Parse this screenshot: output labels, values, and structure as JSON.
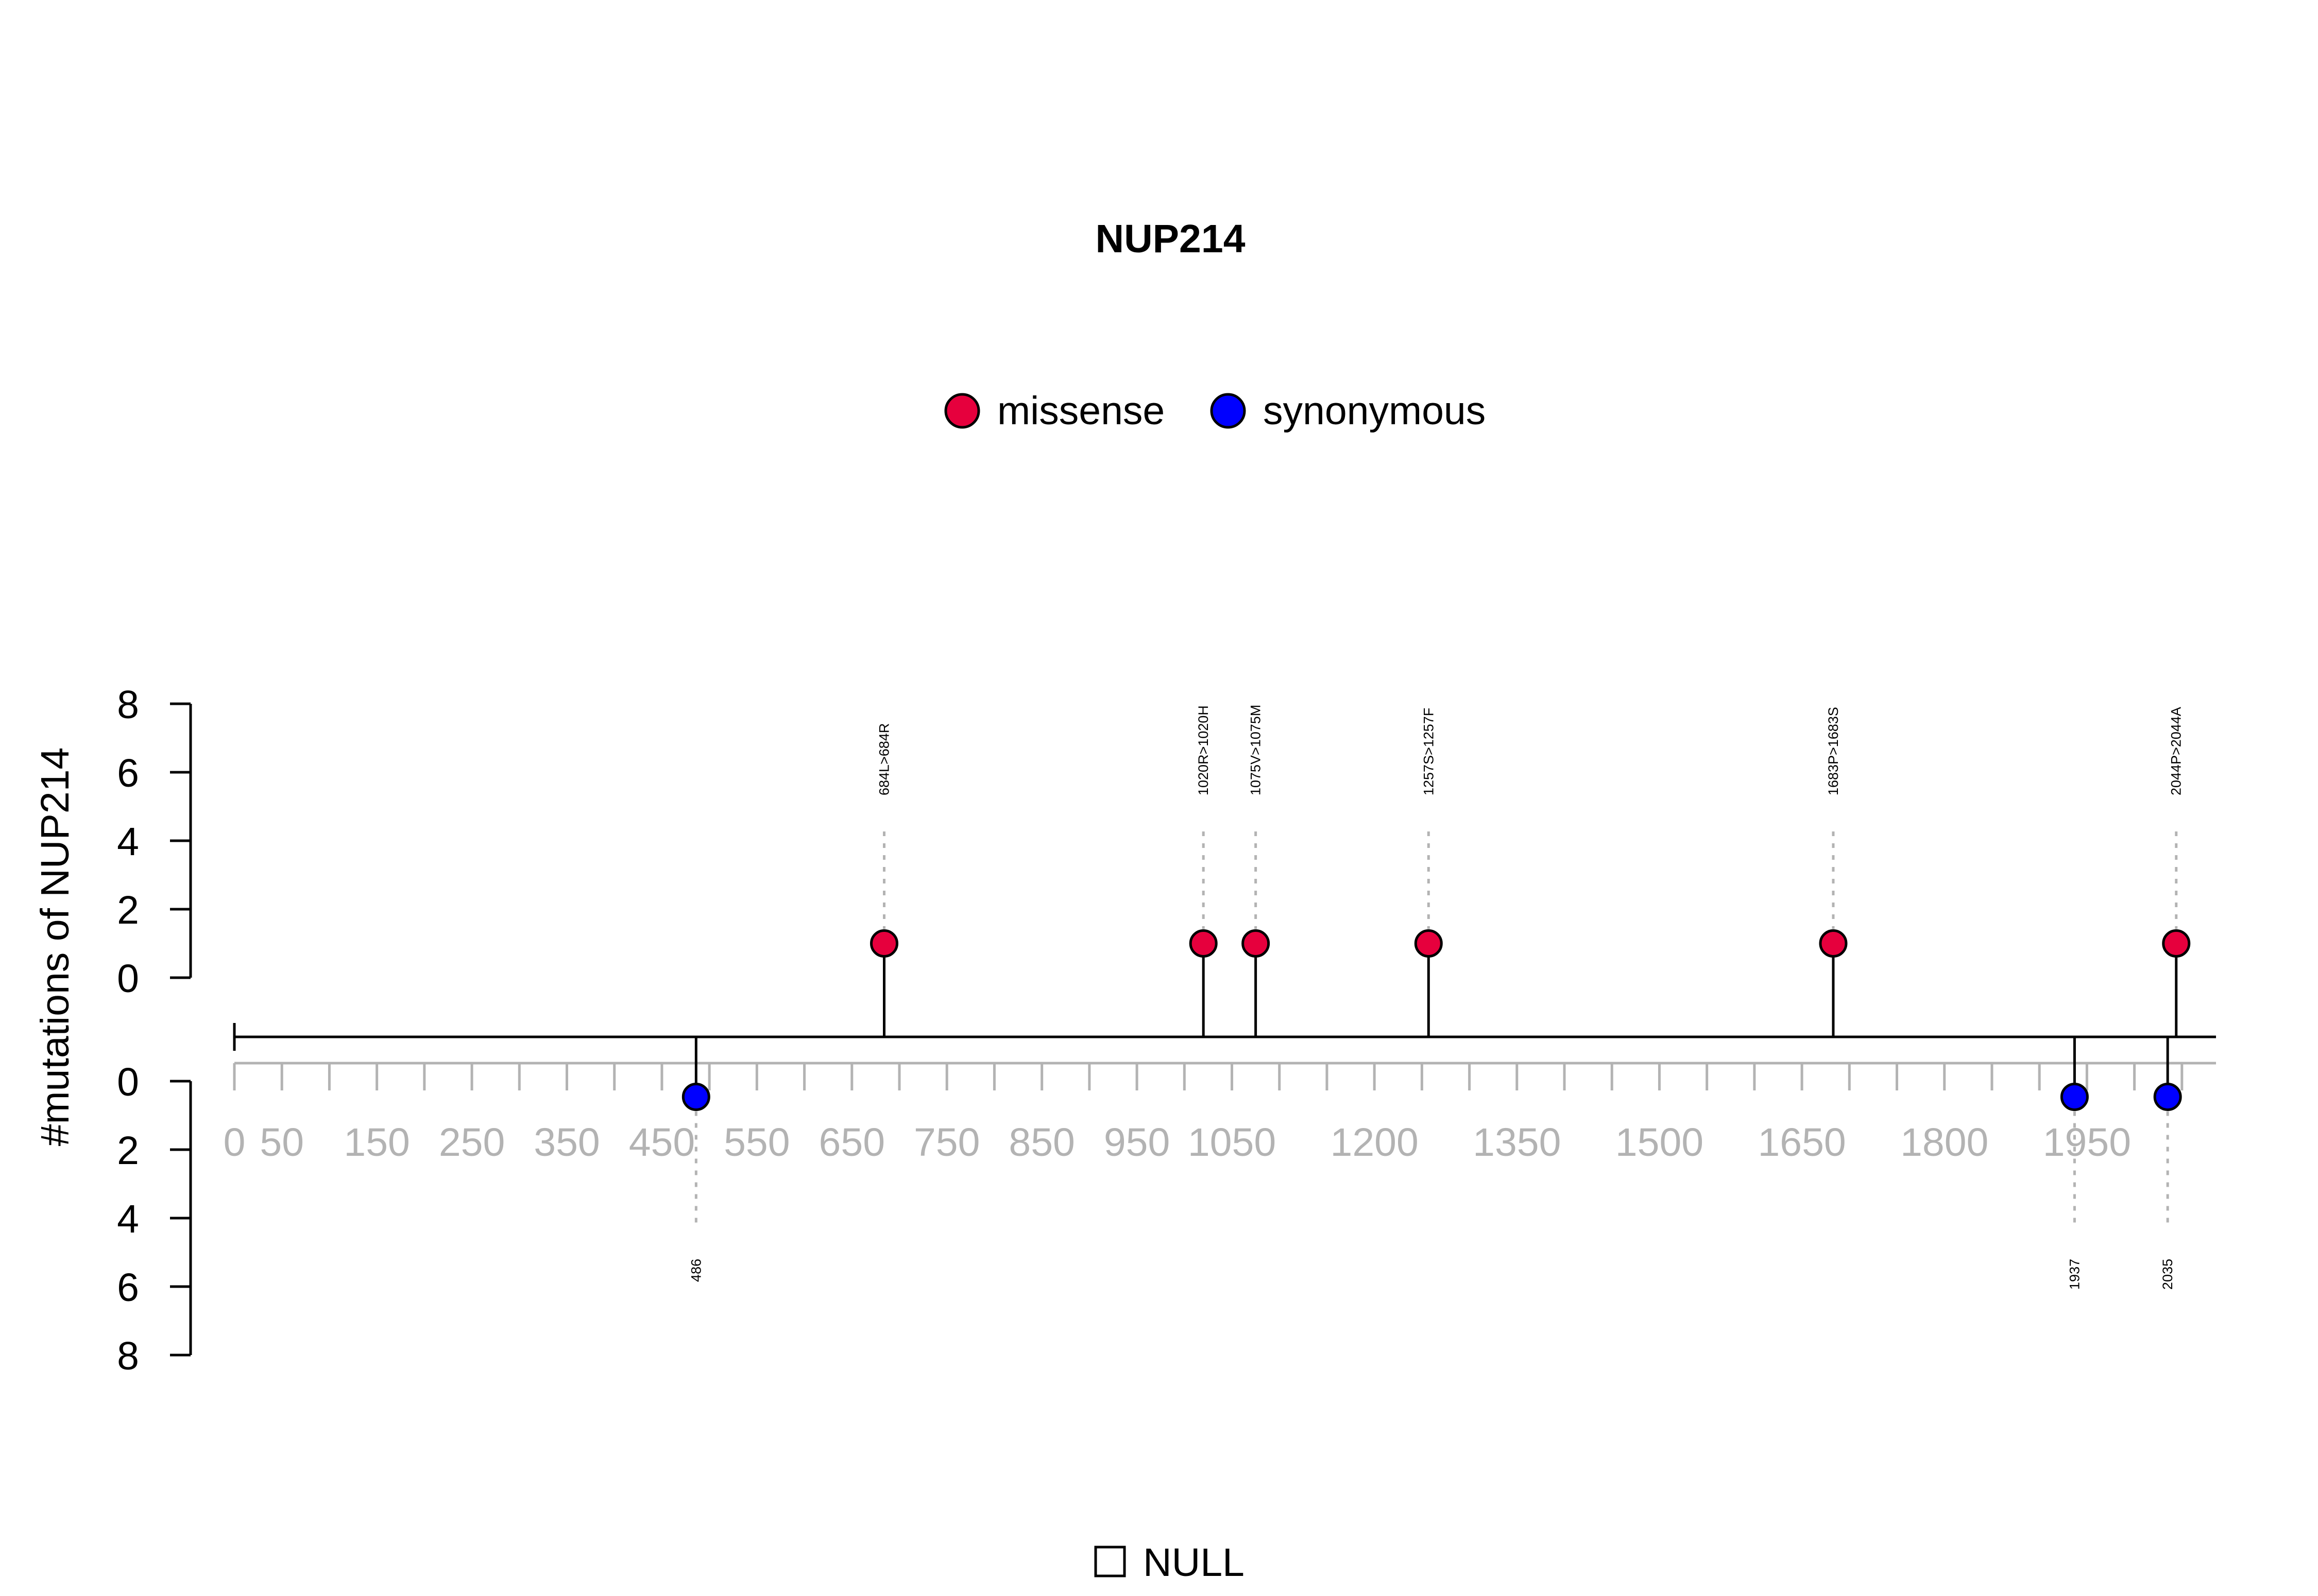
{
  "chart_data": {
    "type": "lollipop",
    "title": "NUP214",
    "ylabel": "#mutations of NUP214",
    "xlim": [
      0,
      2090
    ],
    "ylim_top": [
      0,
      8
    ],
    "ylim_bottom": [
      0,
      8
    ],
    "y_ticks": [
      0,
      2,
      4,
      6,
      8
    ],
    "x_tick_labels": [
      0,
      50,
      150,
      250,
      350,
      450,
      550,
      650,
      750,
      850,
      950,
      1050,
      1200,
      1350,
      1500,
      1650,
      1800,
      1950
    ],
    "x_minor_ticks": [
      0,
      50,
      100,
      150,
      200,
      250,
      300,
      350,
      400,
      450,
      500,
      550,
      600,
      650,
      700,
      750,
      800,
      850,
      900,
      950,
      1000,
      1050,
      1100,
      1150,
      1200,
      1250,
      1300,
      1350,
      1400,
      1450,
      1500,
      1550,
      1600,
      1650,
      1700,
      1750,
      1800,
      1850,
      1900,
      1950,
      2000,
      2050
    ],
    "legend": [
      {
        "name": "missense",
        "color": "#e6003d"
      },
      {
        "name": "synonymous",
        "color": "#0000ff"
      }
    ],
    "top_mutations": [
      {
        "position": 684,
        "count": 1,
        "type": "missense",
        "label": "684L>684R"
      },
      {
        "position": 1020,
        "count": 1,
        "type": "missense",
        "label": "1020R>1020H"
      },
      {
        "position": 1075,
        "count": 1,
        "type": "missense",
        "label": "1075V>1075M"
      },
      {
        "position": 1257,
        "count": 1,
        "type": "missense",
        "label": "1257S>1257F"
      },
      {
        "position": 1683,
        "count": 1,
        "type": "missense",
        "label": "1683P>1683S"
      },
      {
        "position": 2044,
        "count": 1,
        "type": "missense",
        "label": "2044P>2044A"
      }
    ],
    "bottom_mutations": [
      {
        "position": 486,
        "count": 1,
        "type": "synonymous",
        "label": "486"
      },
      {
        "position": 1937,
        "count": 1,
        "type": "synonymous",
        "label": "1937"
      },
      {
        "position": 2035,
        "count": 1,
        "type": "synonymous",
        "label": "2035"
      }
    ],
    "domain_legend": [
      {
        "name": "NULL",
        "color": "#ffffff"
      }
    ]
  }
}
